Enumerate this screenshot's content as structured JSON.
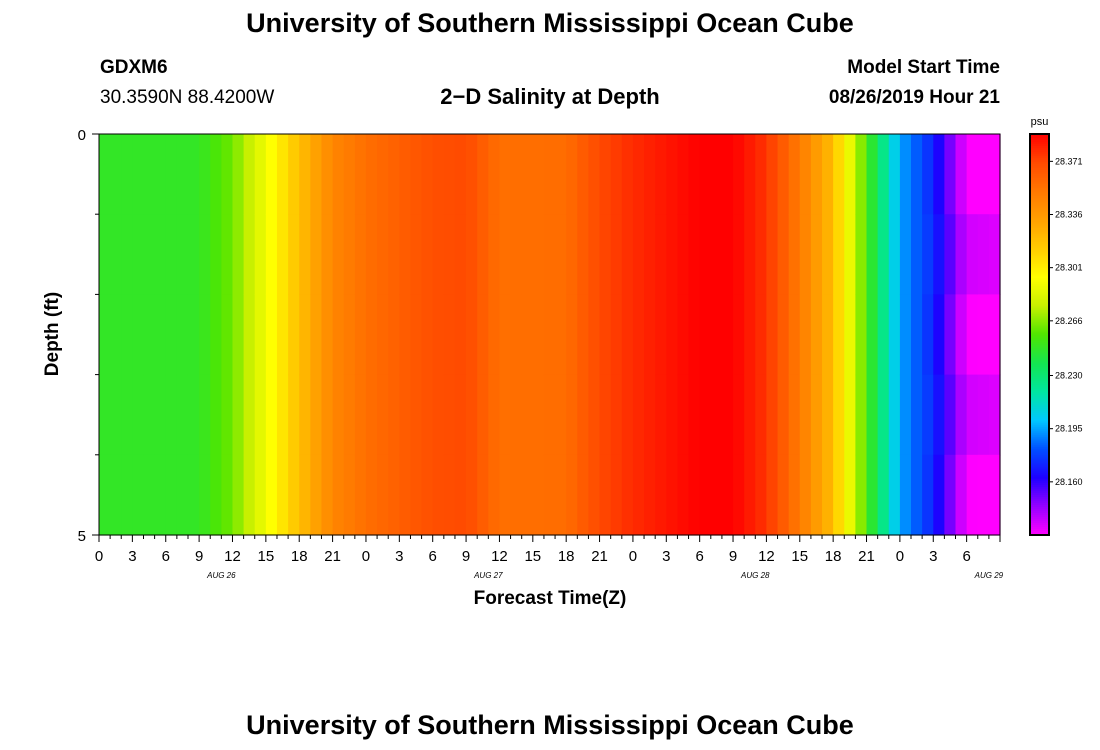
{
  "header": {
    "title_top": "University of Southern Mississippi Ocean Cube",
    "station_id": "GDXM6",
    "station_coords": "30.3590N 88.4200W",
    "plot_title": "2−D Salinity at Depth",
    "model_start_label": "Model Start Time",
    "model_start_value": "08/26/2019 Hour 21",
    "title_bottom": "University of Southern Mississippi Ocean Cube"
  },
  "chart_data": {
    "type": "heatmap",
    "title": "2−D Salinity at Depth",
    "xlabel": "Forecast Time(Z)",
    "ylabel": "Depth (ft)",
    "y_ticks": [
      "0",
      "5"
    ],
    "ylim": [
      0,
      5
    ],
    "x_tick_labels": [
      "0",
      "3",
      "6",
      "9",
      "12",
      "15",
      "18",
      "21",
      "0",
      "3",
      "6",
      "9",
      "12",
      "15",
      "18",
      "21",
      "0",
      "3",
      "6",
      "9",
      "12",
      "15",
      "18",
      "21",
      "0",
      "3",
      "6"
    ],
    "day_labels": [
      {
        "label": "AUG 26",
        "hour_index": 11
      },
      {
        "label": "AUG 27",
        "hour_index": 35
      },
      {
        "label": "AUG 28",
        "hour_index": 59
      },
      {
        "label": "AUG 29",
        "hour_index": 80
      }
    ],
    "colorbar": {
      "unit": "psu",
      "ticks": [
        "28.371",
        "28.336",
        "28.301",
        "28.266",
        "28.230",
        "28.195",
        "28.160"
      ],
      "tick_values": [
        28.371,
        28.336,
        28.301,
        28.266,
        28.23,
        28.195,
        28.16
      ],
      "range": [
        28.125,
        28.389
      ],
      "colors": [
        "#ff00ff",
        "#9600ff",
        "#1e00ff",
        "#0050ff",
        "#00c8ff",
        "#00e6a0",
        "#14e650",
        "#50e600",
        "#c8f000",
        "#ffff00",
        "#ffcc00",
        "#ffa000",
        "#ff7800",
        "#ff4a00",
        "#ff0000"
      ]
    },
    "depth_layers": 5,
    "hours": 82,
    "grid": false,
    "series": [
      {
        "hours": [
          0,
          9,
          12,
          15,
          18,
          21,
          24,
          30,
          33,
          36,
          42,
          45,
          48,
          54,
          57,
          60,
          63,
          66,
          69,
          72,
          75,
          78,
          81
        ],
        "values": [
          28.248,
          28.248,
          28.262,
          28.29,
          28.319,
          28.345,
          28.355,
          28.368,
          28.37,
          28.355,
          28.356,
          28.37,
          28.378,
          28.389,
          28.389,
          28.376,
          28.35,
          28.32,
          28.255,
          28.195,
          28.172,
          28.13,
          28.125
        ]
      }
    ]
  }
}
